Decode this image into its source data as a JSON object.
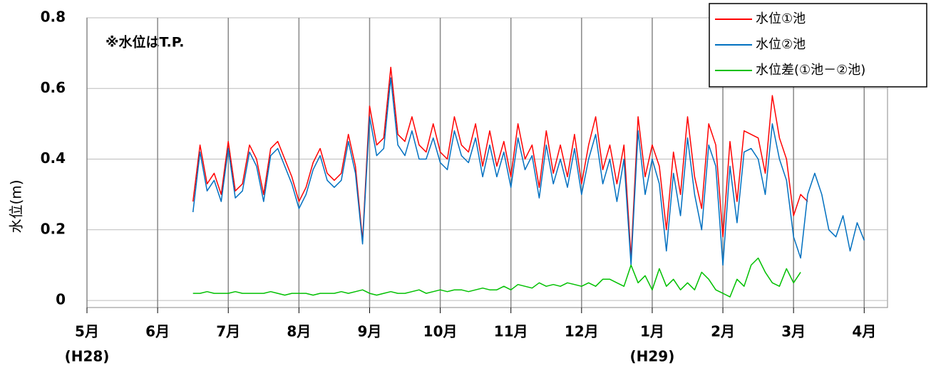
{
  "chart_data": {
    "type": "line",
    "annotation": "※水位はT.P.",
    "y_label": "水位(m)",
    "ylim": [
      -0.02,
      0.8
    ],
    "yticks": [
      0,
      0.2,
      0.4,
      0.6,
      0.8
    ],
    "grid": true,
    "legend": "top-right",
    "xlim": [
      0,
      11.33
    ],
    "xticks": [
      {
        "value": 0,
        "label": "5月"
      },
      {
        "value": 1,
        "label": "6月"
      },
      {
        "value": 2,
        "label": "7月"
      },
      {
        "value": 3,
        "label": "8月"
      },
      {
        "value": 4,
        "label": "9月"
      },
      {
        "value": 5,
        "label": "10月"
      },
      {
        "value": 6,
        "label": "11月"
      },
      {
        "value": 7,
        "label": "12月"
      },
      {
        "value": 8,
        "label": "1月"
      },
      {
        "value": 9,
        "label": "2月"
      },
      {
        "value": 10,
        "label": "3月"
      },
      {
        "value": 11,
        "label": "4月"
      }
    ],
    "era_labels": [
      {
        "value": 0,
        "label": "(H28)"
      },
      {
        "value": 8,
        "label": "(H29)"
      }
    ],
    "x": [
      1.5,
      1.6,
      1.7,
      1.8,
      1.9,
      2.0,
      2.1,
      2.2,
      2.3,
      2.4,
      2.5,
      2.6,
      2.7,
      2.8,
      2.9,
      3.0,
      3.1,
      3.2,
      3.3,
      3.4,
      3.5,
      3.6,
      3.7,
      3.8,
      3.9,
      4.0,
      4.1,
      4.2,
      4.3,
      4.4,
      4.5,
      4.6,
      4.7,
      4.8,
      4.9,
      5.0,
      5.1,
      5.2,
      5.3,
      5.4,
      5.5,
      5.6,
      5.7,
      5.8,
      5.9,
      6.0,
      6.1,
      6.2,
      6.3,
      6.4,
      6.5,
      6.6,
      6.7,
      6.8,
      6.9,
      7.0,
      7.1,
      7.2,
      7.3,
      7.4,
      7.5,
      7.6,
      7.7,
      7.8,
      7.9,
      8.0,
      8.1,
      8.2,
      8.3,
      8.4,
      8.5,
      8.6,
      8.7,
      8.8,
      8.9,
      9.0,
      9.1,
      9.2,
      9.3,
      9.4,
      9.5,
      9.6,
      9.7,
      9.8,
      9.9,
      10.0,
      10.1,
      10.2,
      10.3,
      10.4,
      10.5,
      10.6,
      10.7,
      10.8,
      10.9,
      11.0
    ],
    "series": [
      {
        "name": "水位①池",
        "color": "#ff0000",
        "values": [
          0.28,
          0.44,
          0.33,
          0.36,
          0.3,
          0.45,
          0.31,
          0.33,
          0.44,
          0.4,
          0.3,
          0.43,
          0.45,
          0.4,
          0.35,
          0.28,
          0.32,
          0.39,
          0.43,
          0.36,
          0.34,
          0.36,
          0.47,
          0.38,
          0.17,
          0.55,
          0.44,
          0.46,
          0.66,
          0.47,
          0.45,
          0.52,
          0.44,
          0.42,
          0.5,
          0.42,
          0.4,
          0.52,
          0.44,
          0.42,
          0.5,
          0.38,
          0.48,
          0.38,
          0.45,
          0.35,
          0.5,
          0.4,
          0.44,
          0.32,
          0.48,
          0.36,
          0.44,
          0.35,
          0.47,
          0.33,
          0.44,
          0.52,
          0.37,
          0.44,
          0.33,
          0.44,
          0.12,
          0.52,
          0.35,
          0.44,
          0.38,
          0.2,
          0.42,
          0.3,
          0.52,
          0.35,
          0.26,
          0.5,
          0.44,
          0.18,
          0.45,
          0.28,
          0.48,
          0.47,
          0.46,
          0.36,
          0.58,
          0.46,
          0.4,
          0.24,
          0.3,
          0.28,
          null,
          null,
          null,
          null,
          null,
          null,
          null,
          null
        ]
      },
      {
        "name": "水位②池",
        "color": "#0070c0",
        "values": [
          0.25,
          0.42,
          0.31,
          0.34,
          0.28,
          0.43,
          0.29,
          0.31,
          0.42,
          0.38,
          0.28,
          0.41,
          0.43,
          0.38,
          0.33,
          0.26,
          0.3,
          0.37,
          0.41,
          0.34,
          0.32,
          0.34,
          0.45,
          0.36,
          0.16,
          0.52,
          0.41,
          0.43,
          0.63,
          0.44,
          0.41,
          0.48,
          0.4,
          0.4,
          0.46,
          0.39,
          0.37,
          0.48,
          0.41,
          0.39,
          0.46,
          0.35,
          0.44,
          0.35,
          0.42,
          0.32,
          0.46,
          0.37,
          0.41,
          0.29,
          0.44,
          0.33,
          0.4,
          0.32,
          0.43,
          0.3,
          0.4,
          0.47,
          0.33,
          0.4,
          0.28,
          0.4,
          0.1,
          0.48,
          0.3,
          0.4,
          0.33,
          0.14,
          0.36,
          0.24,
          0.46,
          0.3,
          0.2,
          0.44,
          0.38,
          0.1,
          0.38,
          0.22,
          0.42,
          0.43,
          0.4,
          0.3,
          0.5,
          0.4,
          0.34,
          0.18,
          0.12,
          0.3,
          0.36,
          0.3,
          0.2,
          0.18,
          0.24,
          0.14,
          0.22,
          0.17
        ]
      },
      {
        "name": "水位差(①池－②池)",
        "color": "#00c000",
        "values": [
          0.02,
          0.02,
          0.025,
          0.02,
          0.02,
          0.02,
          0.025,
          0.02,
          0.02,
          0.02,
          0.02,
          0.025,
          0.02,
          0.015,
          0.02,
          0.02,
          0.02,
          0.015,
          0.02,
          0.02,
          0.02,
          0.025,
          0.02,
          0.025,
          0.03,
          0.02,
          0.015,
          0.02,
          0.025,
          0.02,
          0.02,
          0.025,
          0.03,
          0.02,
          0.025,
          0.03,
          0.025,
          0.03,
          0.03,
          0.025,
          0.03,
          0.035,
          0.03,
          0.03,
          0.04,
          0.03,
          0.045,
          0.04,
          0.035,
          0.05,
          0.04,
          0.045,
          0.04,
          0.05,
          0.045,
          0.04,
          0.05,
          0.04,
          0.06,
          0.06,
          0.05,
          0.04,
          0.1,
          0.05,
          0.07,
          0.03,
          0.09,
          0.04,
          0.06,
          0.03,
          0.05,
          0.03,
          0.08,
          0.06,
          0.03,
          0.02,
          0.01,
          0.06,
          0.04,
          0.1,
          0.12,
          0.08,
          0.05,
          0.04,
          0.09,
          0.05,
          0.08,
          null,
          null,
          null,
          null,
          null,
          null,
          null,
          null,
          null
        ]
      }
    ]
  }
}
